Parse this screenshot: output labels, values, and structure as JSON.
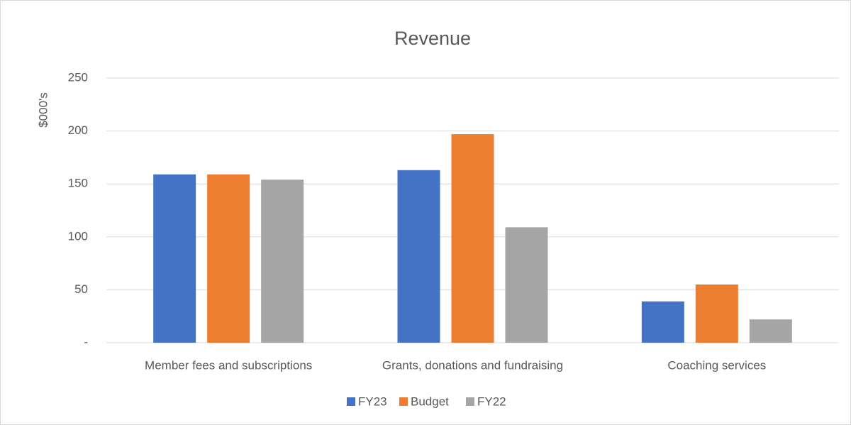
{
  "chart_data": {
    "type": "bar",
    "title": "Revenue",
    "y_label": "$000's",
    "categories": [
      "Member fees and subscriptions",
      "Grants, donations and fundraising",
      "Coaching services"
    ],
    "series": [
      {
        "name": "FY23",
        "color": "#4472c4",
        "values": [
          159,
          163,
          39
        ]
      },
      {
        "name": "Budget",
        "color": "#ed7d31",
        "values": [
          159,
          197,
          55
        ]
      },
      {
        "name": "FY22",
        "color": "#a5a5a5",
        "values": [
          154,
          109,
          22
        ]
      }
    ],
    "ylim": [
      0,
      250
    ],
    "yticks": [
      {
        "value": 0,
        "label": "-"
      },
      50,
      100,
      150,
      200,
      250
    ],
    "grid": true,
    "legend": "bottom"
  }
}
